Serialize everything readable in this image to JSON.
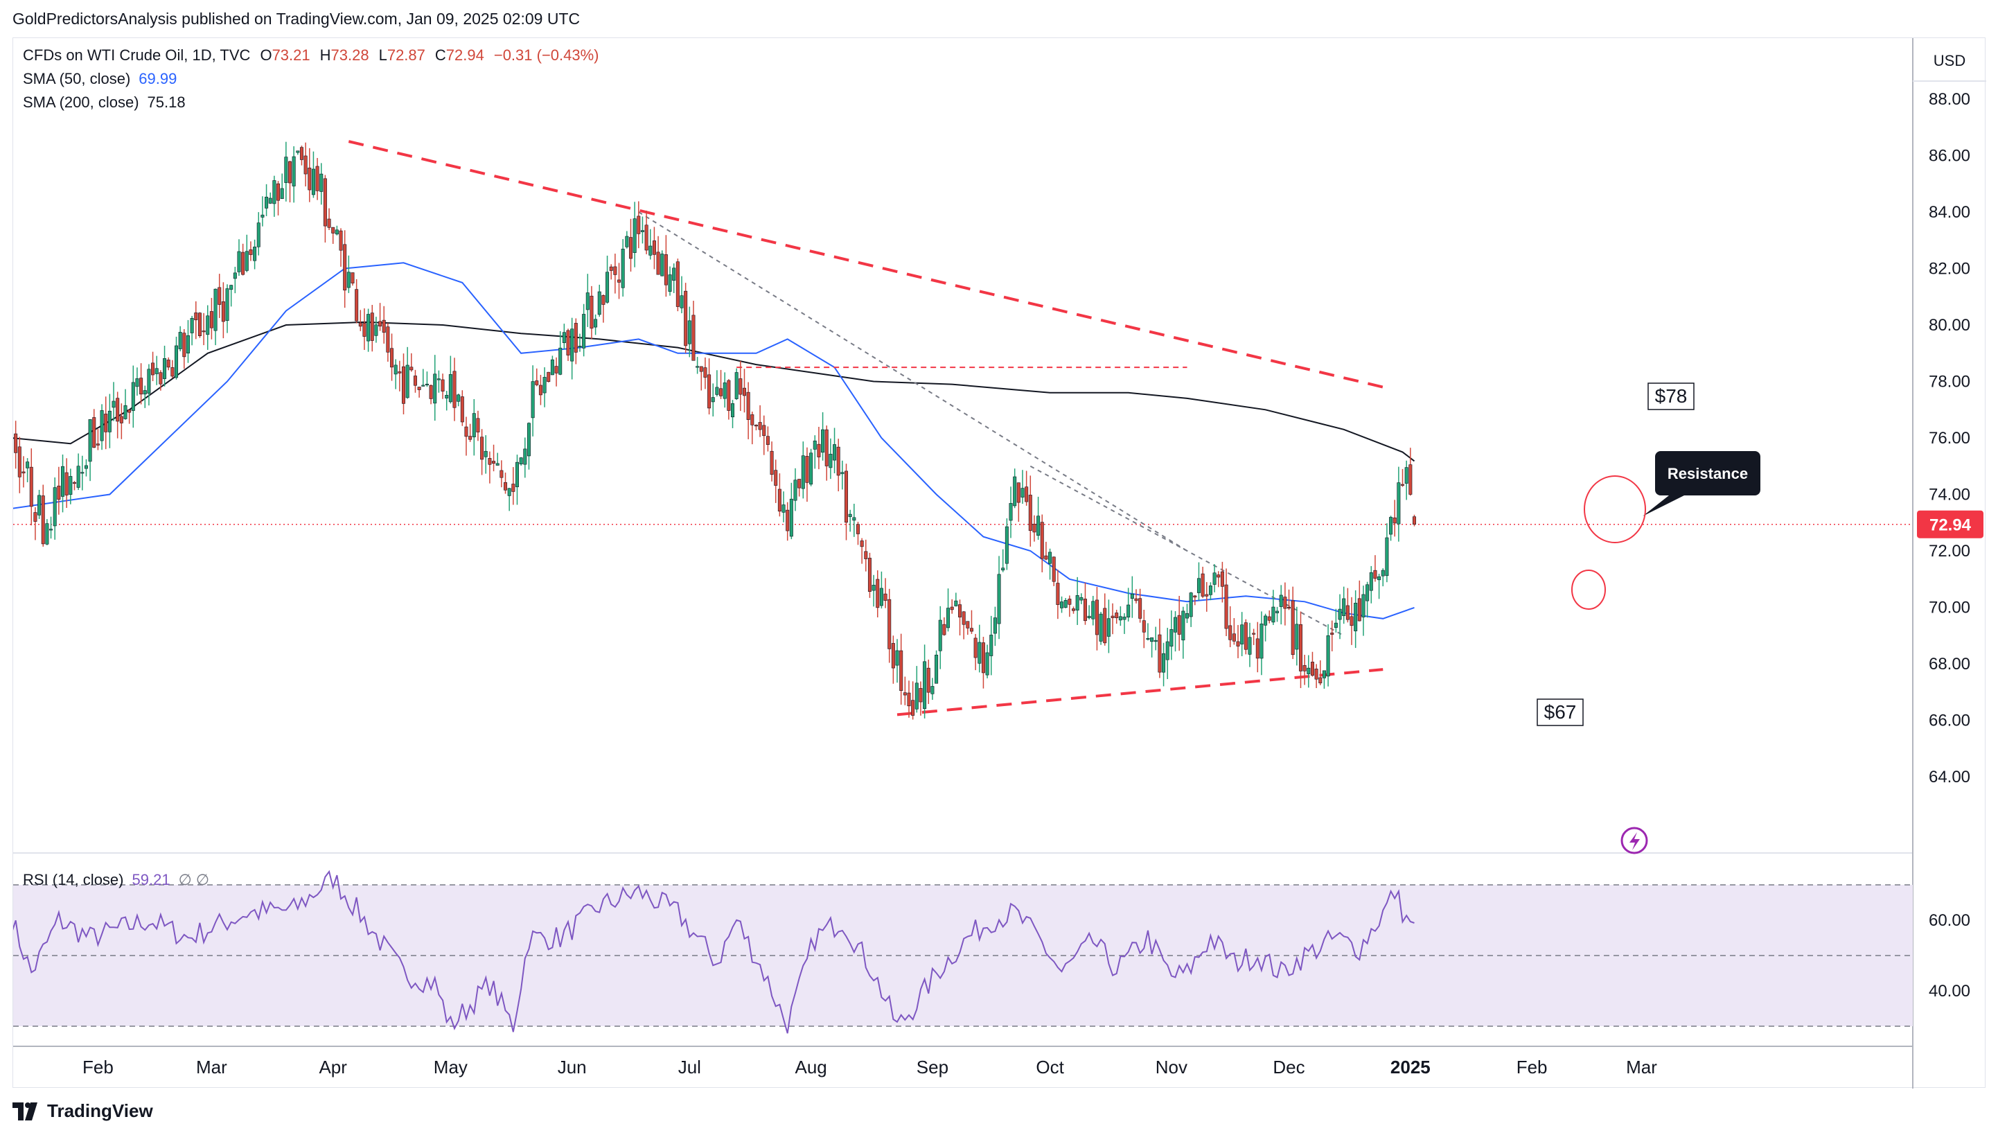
{
  "header": {
    "publisher": "GoldPredictorsAnalysis published on TradingView.com, Jan 09, 2025 02:09 UTC"
  },
  "legend": {
    "symbol": "CFDs on WTI Crude Oil, 1D, TVC",
    "open_label": "O",
    "open": "73.21",
    "high_label": "H",
    "high": "73.28",
    "low_label": "L",
    "low": "72.87",
    "close_label": "C",
    "close": "72.94",
    "change": "−0.31 (−0.43%)",
    "sma50_label": "SMA (50, close)",
    "sma50_value": "69.99",
    "sma200_label": "SMA (200, close)",
    "sma200_value": "75.18",
    "rsi_label": "RSI (14, close)",
    "rsi_value": "59.21",
    "rsi_extra": "∅  ∅"
  },
  "currency": "USD",
  "annotations": {
    "resistance": "Resistance",
    "level_78": "$78",
    "level_67": "$67",
    "last_price": "72.94"
  },
  "footer": {
    "brand": "TradingView"
  },
  "colors": {
    "up": "#22a276",
    "down": "#d0473a",
    "sma50": "#2962ff",
    "sma200": "#131722",
    "trend": "#f23645",
    "rsi": "#7e57c2",
    "rsi_band": "#ede7f6",
    "price_tag": "#f23645"
  },
  "chart_data": {
    "type": "candlestick",
    "title": "CFDs on WTI Crude Oil, 1D, TVC",
    "price_axis": {
      "ticks": [
        64,
        66,
        68,
        70,
        72,
        74,
        76,
        78,
        80,
        82,
        84,
        86,
        88
      ],
      "range": [
        62,
        90
      ]
    },
    "time_axis": {
      "labels": [
        "Feb",
        "Mar",
        "Apr",
        "May",
        "Jun",
        "Jul",
        "Aug",
        "Sep",
        "Oct",
        "Nov",
        "Dec",
        "2025",
        "Feb",
        "Mar"
      ],
      "positions_day": [
        22,
        51,
        82,
        112,
        143,
        173,
        204,
        235,
        265,
        296,
        326,
        357,
        388,
        416
      ]
    },
    "series": {
      "close_anchors": [
        [
          0,
          76
        ],
        [
          8,
          73
        ],
        [
          12,
          74
        ],
        [
          20,
          76
        ],
        [
          35,
          78
        ],
        [
          55,
          81
        ],
        [
          65,
          84
        ],
        [
          72,
          86
        ],
        [
          78,
          85
        ],
        [
          85,
          82
        ],
        [
          90,
          80
        ],
        [
          100,
          78
        ],
        [
          112,
          78
        ],
        [
          122,
          75
        ],
        [
          128,
          74
        ],
        [
          132,
          77
        ],
        [
          140,
          79
        ],
        [
          150,
          81
        ],
        [
          160,
          83.5
        ],
        [
          163,
          83
        ],
        [
          170,
          81
        ],
        [
          178,
          77
        ],
        [
          185,
          78
        ],
        [
          192,
          76
        ],
        [
          198,
          73
        ],
        [
          205,
          76
        ],
        [
          210,
          75
        ],
        [
          214,
          73
        ],
        [
          220,
          71
        ],
        [
          226,
          68
        ],
        [
          230,
          66.5
        ],
        [
          235,
          68
        ],
        [
          240,
          70
        ],
        [
          248,
          68
        ],
        [
          256,
          74
        ],
        [
          262,
          73
        ],
        [
          268,
          70
        ],
        [
          274,
          70
        ],
        [
          280,
          69
        ],
        [
          286,
          71
        ],
        [
          290,
          69
        ],
        [
          294,
          68
        ],
        [
          300,
          70
        ],
        [
          306,
          71
        ],
        [
          312,
          69
        ],
        [
          318,
          68.5
        ],
        [
          324,
          70
        ],
        [
          330,
          68
        ],
        [
          333,
          67.5
        ],
        [
          338,
          70
        ],
        [
          342,
          69.5
        ],
        [
          345,
          70
        ],
        [
          350,
          71.5
        ],
        [
          352,
          73
        ],
        [
          355,
          74.5
        ],
        [
          357,
          74
        ],
        [
          358,
          72.94
        ]
      ],
      "sma50": [
        [
          0,
          73.5
        ],
        [
          25,
          74
        ],
        [
          55,
          78
        ],
        [
          70,
          80.5
        ],
        [
          85,
          82
        ],
        [
          100,
          82.2
        ],
        [
          115,
          81.5
        ],
        [
          130,
          79
        ],
        [
          145,
          79.2
        ],
        [
          160,
          79.5
        ],
        [
          170,
          79
        ],
        [
          180,
          79
        ],
        [
          190,
          79
        ],
        [
          198,
          79.5
        ],
        [
          210,
          78.5
        ],
        [
          222,
          76
        ],
        [
          236,
          74
        ],
        [
          248,
          72.5
        ],
        [
          260,
          72
        ],
        [
          270,
          71
        ],
        [
          285,
          70.5
        ],
        [
          300,
          70.2
        ],
        [
          315,
          70.4
        ],
        [
          330,
          70.2
        ],
        [
          340,
          69.8
        ],
        [
          350,
          69.6
        ],
        [
          358,
          69.99
        ]
      ],
      "sma200": [
        [
          0,
          76
        ],
        [
          15,
          75.8
        ],
        [
          30,
          77
        ],
        [
          50,
          79
        ],
        [
          70,
          80
        ],
        [
          90,
          80.1
        ],
        [
          110,
          80
        ],
        [
          130,
          79.7
        ],
        [
          150,
          79.5
        ],
        [
          170,
          79.2
        ],
        [
          190,
          78.6
        ],
        [
          205,
          78.3
        ],
        [
          220,
          78
        ],
        [
          240,
          77.9
        ],
        [
          265,
          77.6
        ],
        [
          285,
          77.6
        ],
        [
          300,
          77.4
        ],
        [
          320,
          77
        ],
        [
          340,
          76.3
        ],
        [
          355,
          75.5
        ],
        [
          358,
          75.18
        ]
      ],
      "rsi_anchors": [
        [
          0,
          60
        ],
        [
          5,
          45
        ],
        [
          12,
          60
        ],
        [
          20,
          55
        ],
        [
          35,
          60
        ],
        [
          45,
          55
        ],
        [
          60,
          62
        ],
        [
          72,
          63
        ],
        [
          82,
          72
        ],
        [
          90,
          60
        ],
        [
          100,
          45
        ],
        [
          108,
          42
        ],
        [
          112,
          30
        ],
        [
          122,
          42
        ],
        [
          128,
          30
        ],
        [
          132,
          55
        ],
        [
          140,
          55
        ],
        [
          150,
          64
        ],
        [
          160,
          68
        ],
        [
          170,
          62
        ],
        [
          180,
          48
        ],
        [
          185,
          60
        ],
        [
          192,
          45
        ],
        [
          198,
          30
        ],
        [
          205,
          55
        ],
        [
          212,
          60
        ],
        [
          220,
          45
        ],
        [
          226,
          30
        ],
        [
          230,
          35
        ],
        [
          236,
          45
        ],
        [
          244,
          55
        ],
        [
          250,
          60
        ],
        [
          256,
          62
        ],
        [
          262,
          55
        ],
        [
          268,
          45
        ],
        [
          276,
          54
        ],
        [
          282,
          46
        ],
        [
          290,
          55
        ],
        [
          296,
          44
        ],
        [
          300,
          45
        ],
        [
          306,
          55
        ],
        [
          312,
          48
        ],
        [
          318,
          50
        ],
        [
          324,
          45
        ],
        [
          330,
          50
        ],
        [
          338,
          55
        ],
        [
          344,
          52
        ],
        [
          350,
          62
        ],
        [
          353,
          68
        ],
        [
          356,
          60
        ],
        [
          358,
          59.21
        ]
      ],
      "rsi_levels": [
        70,
        50,
        30
      ],
      "rsi_ticks": [
        40,
        60
      ]
    },
    "trendlines": [
      {
        "name": "upper-trend",
        "points": [
          [
            86,
            86.5
          ],
          [
            350,
            77.8
          ]
        ]
      },
      {
        "name": "lower-trend",
        "points": [
          [
            226,
            66.2
          ],
          [
            350,
            67.8
          ]
        ]
      },
      {
        "name": "level-78",
        "points": [
          [
            185,
            78.5
          ],
          [
            300,
            78.5
          ]
        ]
      },
      {
        "name": "diag-1",
        "points": [
          [
            160,
            84
          ],
          [
            300,
            72
          ]
        ]
      },
      {
        "name": "diag-2",
        "points": [
          [
            260,
            75
          ],
          [
            340,
            69
          ]
        ]
      }
    ],
    "last_close": 72.94
  }
}
